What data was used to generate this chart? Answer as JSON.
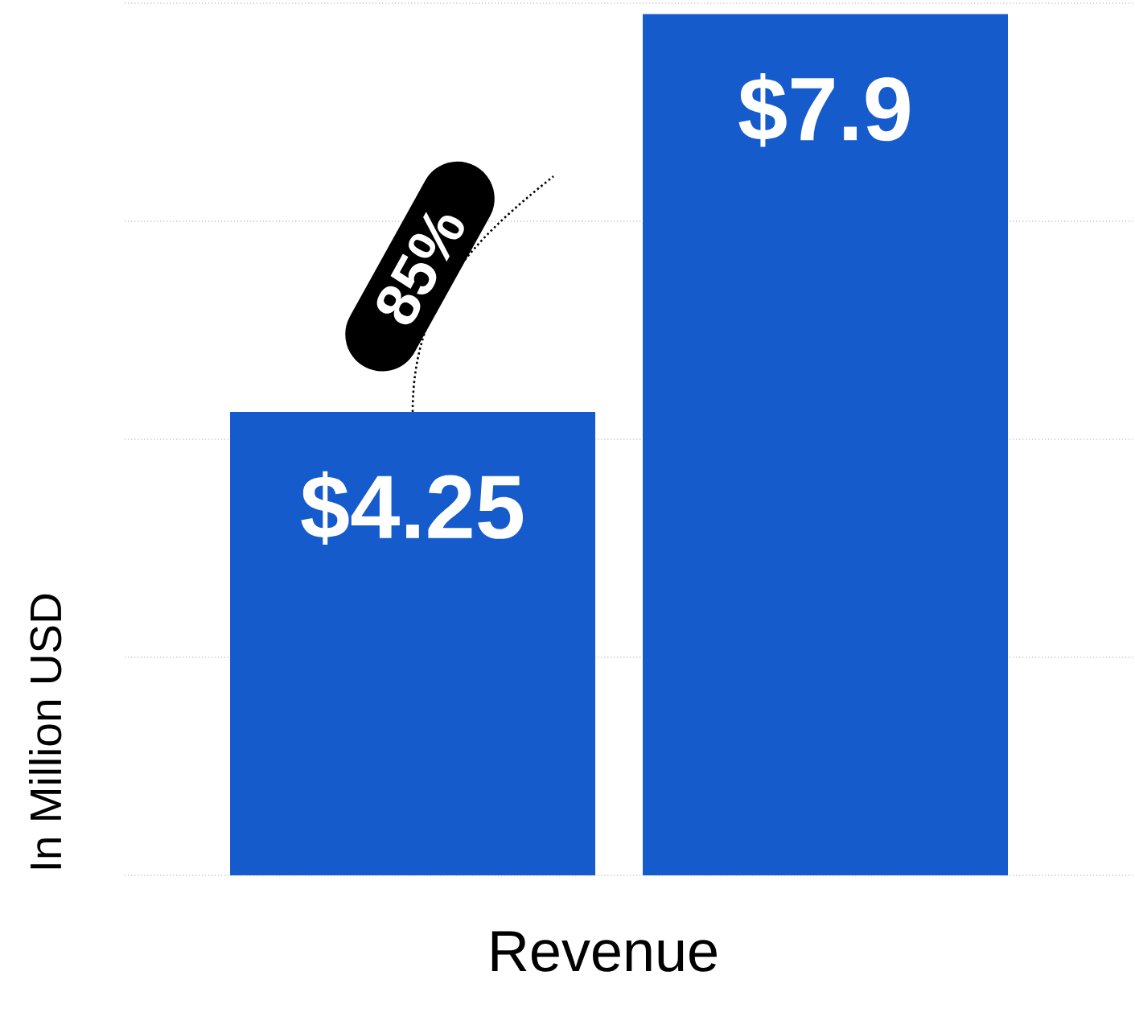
{
  "chart_data": {
    "type": "bar",
    "xlabel": "Revenue",
    "ylabel": "In Million USD",
    "categories": [
      null,
      null
    ],
    "values": [
      4.25,
      7.9
    ],
    "value_labels": [
      "$4.25",
      "$7.9"
    ],
    "color": "#165bcc",
    "ylim": [
      0,
      8
    ],
    "yticks": [
      {
        "value": 0,
        "label": null
      },
      {
        "value": 2,
        "label": null
      },
      {
        "value": 4,
        "label": null
      },
      {
        "value": 6,
        "label": null
      },
      {
        "value": 8,
        "label": null
      }
    ],
    "grid": "y",
    "annotations": [
      "85%"
    ]
  }
}
